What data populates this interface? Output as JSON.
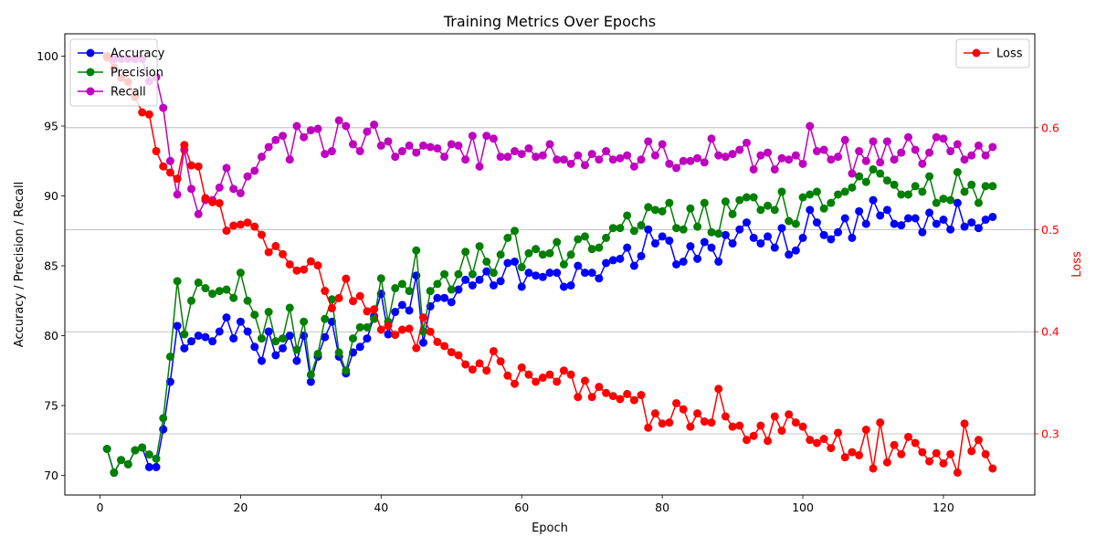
{
  "chart_data": {
    "type": "line",
    "title": "Training Metrics Over Epochs",
    "xlabel": "Epoch",
    "ylabel_left": "Accuracy / Precision / Recall",
    "ylabel_right": "Loss",
    "xlim": [
      -5,
      133
    ],
    "ylim_left": [
      68.6,
      101.6
    ],
    "ylim_right": [
      0.24,
      0.692
    ],
    "xticks": [
      0,
      20,
      40,
      60,
      80,
      100,
      120
    ],
    "yticks_left": [
      70,
      75,
      80,
      85,
      90,
      95,
      100
    ],
    "yticks_right": [
      0.3,
      0.4,
      0.5,
      0.6
    ],
    "grid": "horizontal at right-axis ticks",
    "legend_left": "top-left",
    "legend_right": "top-right",
    "x": [
      1,
      2,
      3,
      4,
      5,
      6,
      7,
      8,
      9,
      10,
      11,
      12,
      13,
      14,
      15,
      16,
      17,
      18,
      19,
      20,
      21,
      22,
      23,
      24,
      25,
      26,
      27,
      28,
      29,
      30,
      31,
      32,
      33,
      34,
      35,
      36,
      37,
      38,
      39,
      40,
      41,
      42,
      43,
      44,
      45,
      46,
      47,
      48,
      49,
      50,
      51,
      52,
      53,
      54,
      55,
      56,
      57,
      58,
      59,
      60,
      61,
      62,
      63,
      64,
      65,
      66,
      67,
      68,
      69,
      70,
      71,
      72,
      73,
      74,
      75,
      76,
      77,
      78,
      79,
      80,
      81,
      82,
      83,
      84,
      85,
      86,
      87,
      88,
      89,
      90,
      91,
      92,
      93,
      94,
      95,
      96,
      97,
      98,
      99,
      100,
      101,
      102,
      103,
      104,
      105,
      106,
      107,
      108,
      109,
      110,
      111,
      112,
      113,
      114,
      115,
      116,
      117,
      118,
      119,
      120,
      121,
      122,
      123,
      124,
      125,
      126,
      127
    ],
    "series": [
      {
        "name": "Accuracy",
        "axis": "left",
        "color": "#0000ff",
        "values": [
          71.9,
          70.2,
          71.1,
          70.8,
          71.8,
          72.0,
          70.6,
          70.6,
          73.3,
          76.7,
          80.7,
          79.1,
          79.6,
          80.0,
          79.9,
          79.6,
          80.3,
          81.3,
          79.8,
          81.0,
          80.3,
          79.2,
          78.2,
          80.3,
          78.6,
          79.1,
          80.0,
          78.2,
          80.0,
          76.7,
          78.5,
          79.9,
          81.0,
          78.5,
          77.3,
          78.8,
          79.2,
          79.8,
          81.4,
          83.0,
          80.1,
          81.7,
          82.2,
          81.8,
          84.3,
          79.5,
          82.1,
          82.7,
          82.7,
          82.4,
          83.3,
          84.0,
          83.6,
          84.0,
          84.6,
          83.6,
          83.9,
          85.2,
          85.3,
          83.5,
          84.5,
          84.3,
          84.2,
          84.5,
          84.5,
          83.5,
          83.6,
          85.0,
          84.5,
          84.5,
          84.1,
          85.2,
          85.4,
          85.5,
          86.3,
          85.0,
          85.7,
          87.6,
          86.6,
          87.1,
          86.8,
          85.1,
          85.3,
          86.4,
          85.5,
          86.7,
          86.3,
          85.3,
          87.2,
          86.6,
          87.6,
          88.1,
          87.0,
          86.6,
          87.1,
          86.3,
          87.7,
          85.8,
          86.1,
          87.0,
          89.0,
          88.1,
          87.2,
          86.9,
          87.4,
          88.4,
          87.0,
          88.9,
          88.0,
          89.7,
          88.6,
          89.0,
          88.0,
          87.9,
          88.4,
          88.4,
          87.4,
          88.8,
          88.0,
          88.3,
          87.6,
          89.5,
          87.8,
          88.1,
          87.7,
          88.3,
          88.5
        ]
      },
      {
        "name": "Precision",
        "axis": "left",
        "color": "#008000",
        "values": [
          71.9,
          70.2,
          71.1,
          70.8,
          71.8,
          72.0,
          71.5,
          71.2,
          74.1,
          78.5,
          83.9,
          80.1,
          82.5,
          83.8,
          83.4,
          83.0,
          83.2,
          83.3,
          82.7,
          84.5,
          82.5,
          81.5,
          79.8,
          81.7,
          79.6,
          79.8,
          82.0,
          79.0,
          81.0,
          77.2,
          78.7,
          81.2,
          82.6,
          78.8,
          77.5,
          79.8,
          80.6,
          80.6,
          81.2,
          84.1,
          81.0,
          83.4,
          83.7,
          83.2,
          86.1,
          80.3,
          83.2,
          83.7,
          84.4,
          83.3,
          84.4,
          86.0,
          84.4,
          86.4,
          85.3,
          84.5,
          85.8,
          87.0,
          87.5,
          84.9,
          85.9,
          86.2,
          85.8,
          85.9,
          86.7,
          85.1,
          85.8,
          86.9,
          87.1,
          86.2,
          86.3,
          87.0,
          87.7,
          87.7,
          88.6,
          87.5,
          87.9,
          89.2,
          89.0,
          88.9,
          89.5,
          87.7,
          87.6,
          89.1,
          87.8,
          89.5,
          87.4,
          87.3,
          89.6,
          88.7,
          89.7,
          89.9,
          89.9,
          89.0,
          89.3,
          89.0,
          90.3,
          88.2,
          88.0,
          89.9,
          90.1,
          90.3,
          89.1,
          89.5,
          90.1,
          90.3,
          90.6,
          91.4,
          91.0,
          91.9,
          91.6,
          91.1,
          90.8,
          90.1,
          90.1,
          90.7,
          90.3,
          91.4,
          89.5,
          89.8,
          89.7,
          91.7,
          90.3,
          90.8,
          89.5,
          90.7,
          90.7
        ]
      },
      {
        "name": "Recall",
        "axis": "left",
        "color": "#bf00bf",
        "values": [
          100.0,
          99.8,
          99.8,
          99.8,
          99.8,
          99.8,
          98.2,
          98.5,
          96.3,
          92.5,
          90.1,
          93.3,
          90.5,
          88.7,
          89.7,
          89.7,
          90.6,
          92.0,
          90.5,
          90.2,
          91.4,
          91.8,
          92.8,
          93.5,
          94.0,
          94.3,
          92.6,
          95.0,
          94.2,
          94.7,
          94.8,
          93.0,
          93.2,
          95.4,
          95.0,
          93.7,
          93.2,
          94.6,
          95.1,
          93.6,
          93.9,
          92.8,
          93.2,
          93.6,
          93.1,
          93.6,
          93.5,
          93.4,
          92.8,
          93.7,
          93.6,
          92.6,
          94.3,
          92.1,
          94.3,
          94.1,
          92.8,
          92.8,
          93.2,
          93.0,
          93.4,
          92.8,
          92.9,
          93.7,
          92.6,
          92.6,
          92.3,
          92.9,
          92.2,
          93.0,
          92.6,
          93.2,
          92.6,
          92.7,
          92.9,
          92.1,
          92.6,
          93.9,
          92.9,
          93.7,
          92.3,
          92.0,
          92.5,
          92.5,
          92.7,
          92.4,
          94.1,
          92.9,
          92.8,
          93.0,
          93.3,
          93.8,
          91.9,
          92.9,
          93.1,
          91.9,
          92.7,
          92.6,
          92.9,
          92.3,
          95.0,
          93.2,
          93.3,
          92.6,
          92.8,
          94.0,
          91.6,
          93.2,
          92.5,
          93.9,
          92.4,
          93.9,
          92.6,
          93.1,
          94.2,
          93.3,
          92.3,
          93.1,
          94.2,
          94.1,
          93.2,
          93.7,
          92.6,
          92.9,
          93.6,
          92.9,
          93.5
        ]
      },
      {
        "name": "Loss",
        "axis": "right",
        "color": "#ff0000",
        "values": [
          0.669,
          0.659,
          0.649,
          0.645,
          0.63,
          0.615,
          0.613,
          0.577,
          0.562,
          0.556,
          0.55,
          0.583,
          0.563,
          0.562,
          0.531,
          0.527,
          0.526,
          0.499,
          0.504,
          0.505,
          0.507,
          0.503,
          0.495,
          0.478,
          0.484,
          0.476,
          0.466,
          0.46,
          0.461,
          0.469,
          0.465,
          0.44,
          0.423,
          0.433,
          0.452,
          0.43,
          0.435,
          0.42,
          0.422,
          0.402,
          0.406,
          0.397,
          0.402,
          0.403,
          0.384,
          0.414,
          0.4,
          0.39,
          0.386,
          0.38,
          0.377,
          0.368,
          0.363,
          0.369,
          0.362,
          0.381,
          0.371,
          0.357,
          0.349,
          0.365,
          0.358,
          0.351,
          0.355,
          0.358,
          0.351,
          0.362,
          0.358,
          0.336,
          0.352,
          0.336,
          0.346,
          0.34,
          0.337,
          0.334,
          0.339,
          0.333,
          0.338,
          0.306,
          0.32,
          0.31,
          0.311,
          0.33,
          0.324,
          0.307,
          0.32,
          0.312,
          0.311,
          0.344,
          0.317,
          0.307,
          0.308,
          0.294,
          0.298,
          0.308,
          0.293,
          0.317,
          0.303,
          0.319,
          0.311,
          0.307,
          0.294,
          0.291,
          0.295,
          0.286,
          0.301,
          0.277,
          0.282,
          0.279,
          0.304,
          0.266,
          0.311,
          0.272,
          0.289,
          0.28,
          0.297,
          0.291,
          0.282,
          0.273,
          0.281,
          0.271,
          0.28,
          0.262,
          0.31,
          0.283,
          0.294,
          0.28,
          0.266
        ]
      }
    ]
  }
}
